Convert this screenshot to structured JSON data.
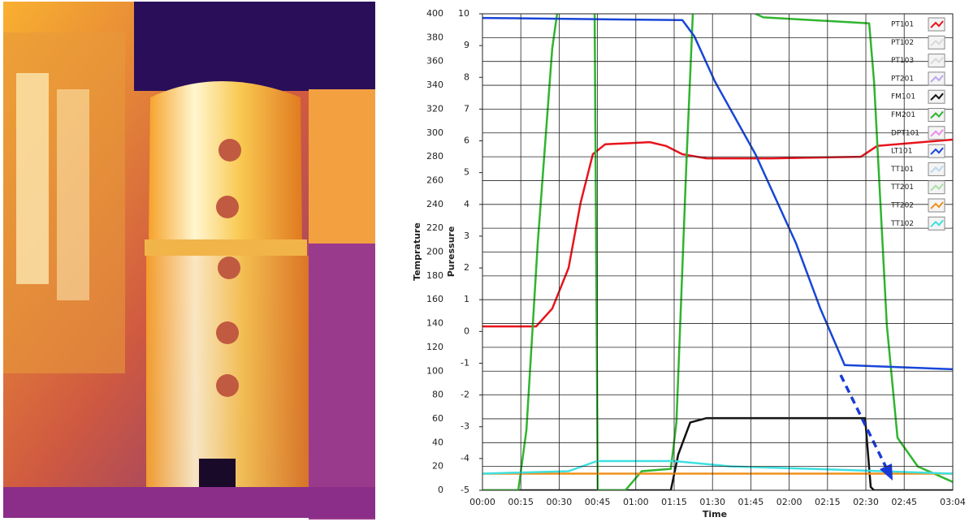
{
  "chart_data": {
    "type": "line",
    "y_label": "Temprature",
    "y2_label": "Puressure",
    "x_label": "Time",
    "xlim": [
      0,
      184
    ],
    "xticks": [
      {
        "value": 0,
        "label": "00:00"
      },
      {
        "value": 15,
        "label": "00:15"
      },
      {
        "value": 30,
        "label": "00:30"
      },
      {
        "value": 45,
        "label": "00:45"
      },
      {
        "value": 60,
        "label": "01:00"
      },
      {
        "value": 75,
        "label": "01:15"
      },
      {
        "value": 90,
        "label": "01:30"
      },
      {
        "value": 105,
        "label": "01:45"
      },
      {
        "value": 120,
        "label": "02:00"
      },
      {
        "value": 135,
        "label": "02:15"
      },
      {
        "value": 150,
        "label": "02:30"
      },
      {
        "value": 165,
        "label": "02:45"
      },
      {
        "value": 184,
        "label": "03:04"
      }
    ],
    "ylim": [
      0,
      400
    ],
    "yticks": [
      0,
      20,
      40,
      60,
      80,
      100,
      120,
      140,
      160,
      180,
      200,
      220,
      240,
      260,
      280,
      300,
      320,
      340,
      360,
      380,
      400
    ],
    "y2lim": [
      -5,
      10
    ],
    "y2ticks": [
      -5,
      -4,
      -3,
      -2,
      -1,
      0,
      1,
      2,
      3,
      4,
      5,
      6,
      7,
      8,
      9,
      10
    ],
    "grid": true,
    "legend": "upper right",
    "series": [
      {
        "name": "PT101",
        "color": "#e8141c",
        "axis": "y2",
        "x": [
          0,
          21,
          27.3,
          33.7,
          38.4,
          43.2,
          48,
          65.5,
          71.8,
          78.2,
          87.7,
          113.1,
          148.1,
          154.4,
          184
        ],
        "values": [
          0.16,
          0.16,
          0.72,
          2.0,
          4.05,
          5.58,
          5.89,
          5.96,
          5.84,
          5.58,
          5.45,
          5.45,
          5.5,
          5.84,
          6.04
        ]
      },
      {
        "name": "PT102",
        "color": "#d8d8d8"
      },
      {
        "name": "PT103",
        "color": "#d8d8d8"
      },
      {
        "name": "PT201",
        "color": "#b9a6f0"
      },
      {
        "name": "FM101",
        "color": "#111111",
        "axis": "y",
        "x": [
          0,
          73.7,
          76.6,
          81.3,
          87.7,
          149.7,
          151.9,
          153.2,
          184
        ],
        "values": [
          0,
          0,
          30,
          57,
          60.6,
          60.6,
          2.7,
          0,
          0
        ]
      },
      {
        "name": "FM201",
        "color": "#2fb52f",
        "axis": "y",
        "x": [
          0,
          14,
          17.2,
          21.6,
          27.3,
          29.2,
          36,
          43.9,
          45.1,
          55.9,
          62.3,
          73.7,
          75.9,
          79.8,
          82.3,
          95,
          106.8,
          109.9,
          151.3,
          153.2,
          158.2,
          162.4,
          170.3,
          184
        ],
        "values": [
          0,
          0,
          50.4,
          207,
          371,
          400,
          null,
          400,
          0,
          0,
          16,
          18,
          57,
          275,
          400,
          null,
          400,
          397,
          392,
          343,
          139,
          44,
          20,
          7
        ]
      },
      {
        "name": "DPT101",
        "color": "#e88ee8"
      },
      {
        "name": "LT101",
        "color": "#1846d8",
        "axis": "y2",
        "x": [
          0,
          78.2,
          82.9,
          90.9,
          106.8,
          122.7,
          132.2,
          141.7,
          184
        ],
        "values": [
          9.87,
          9.8,
          9.29,
          7.88,
          5.58,
          2.77,
          0.72,
          -1.06,
          -1.19
        ]
      },
      {
        "name": "TT101",
        "color": "#b8d8f0"
      },
      {
        "name": "TT201",
        "color": "#a8e0a8"
      },
      {
        "name": "TT202",
        "color": "#f0901a",
        "axis": "y",
        "x": [
          0,
          184
        ],
        "values": [
          14,
          14
        ]
      },
      {
        "name": "TT102",
        "color": "#3ee0e0",
        "axis": "y",
        "x": [
          0,
          33.7,
          44.8,
          75,
          97.2,
          129,
          184
        ],
        "values": [
          14,
          16,
          24.5,
          24.5,
          20,
          18,
          14
        ]
      }
    ]
  }
}
